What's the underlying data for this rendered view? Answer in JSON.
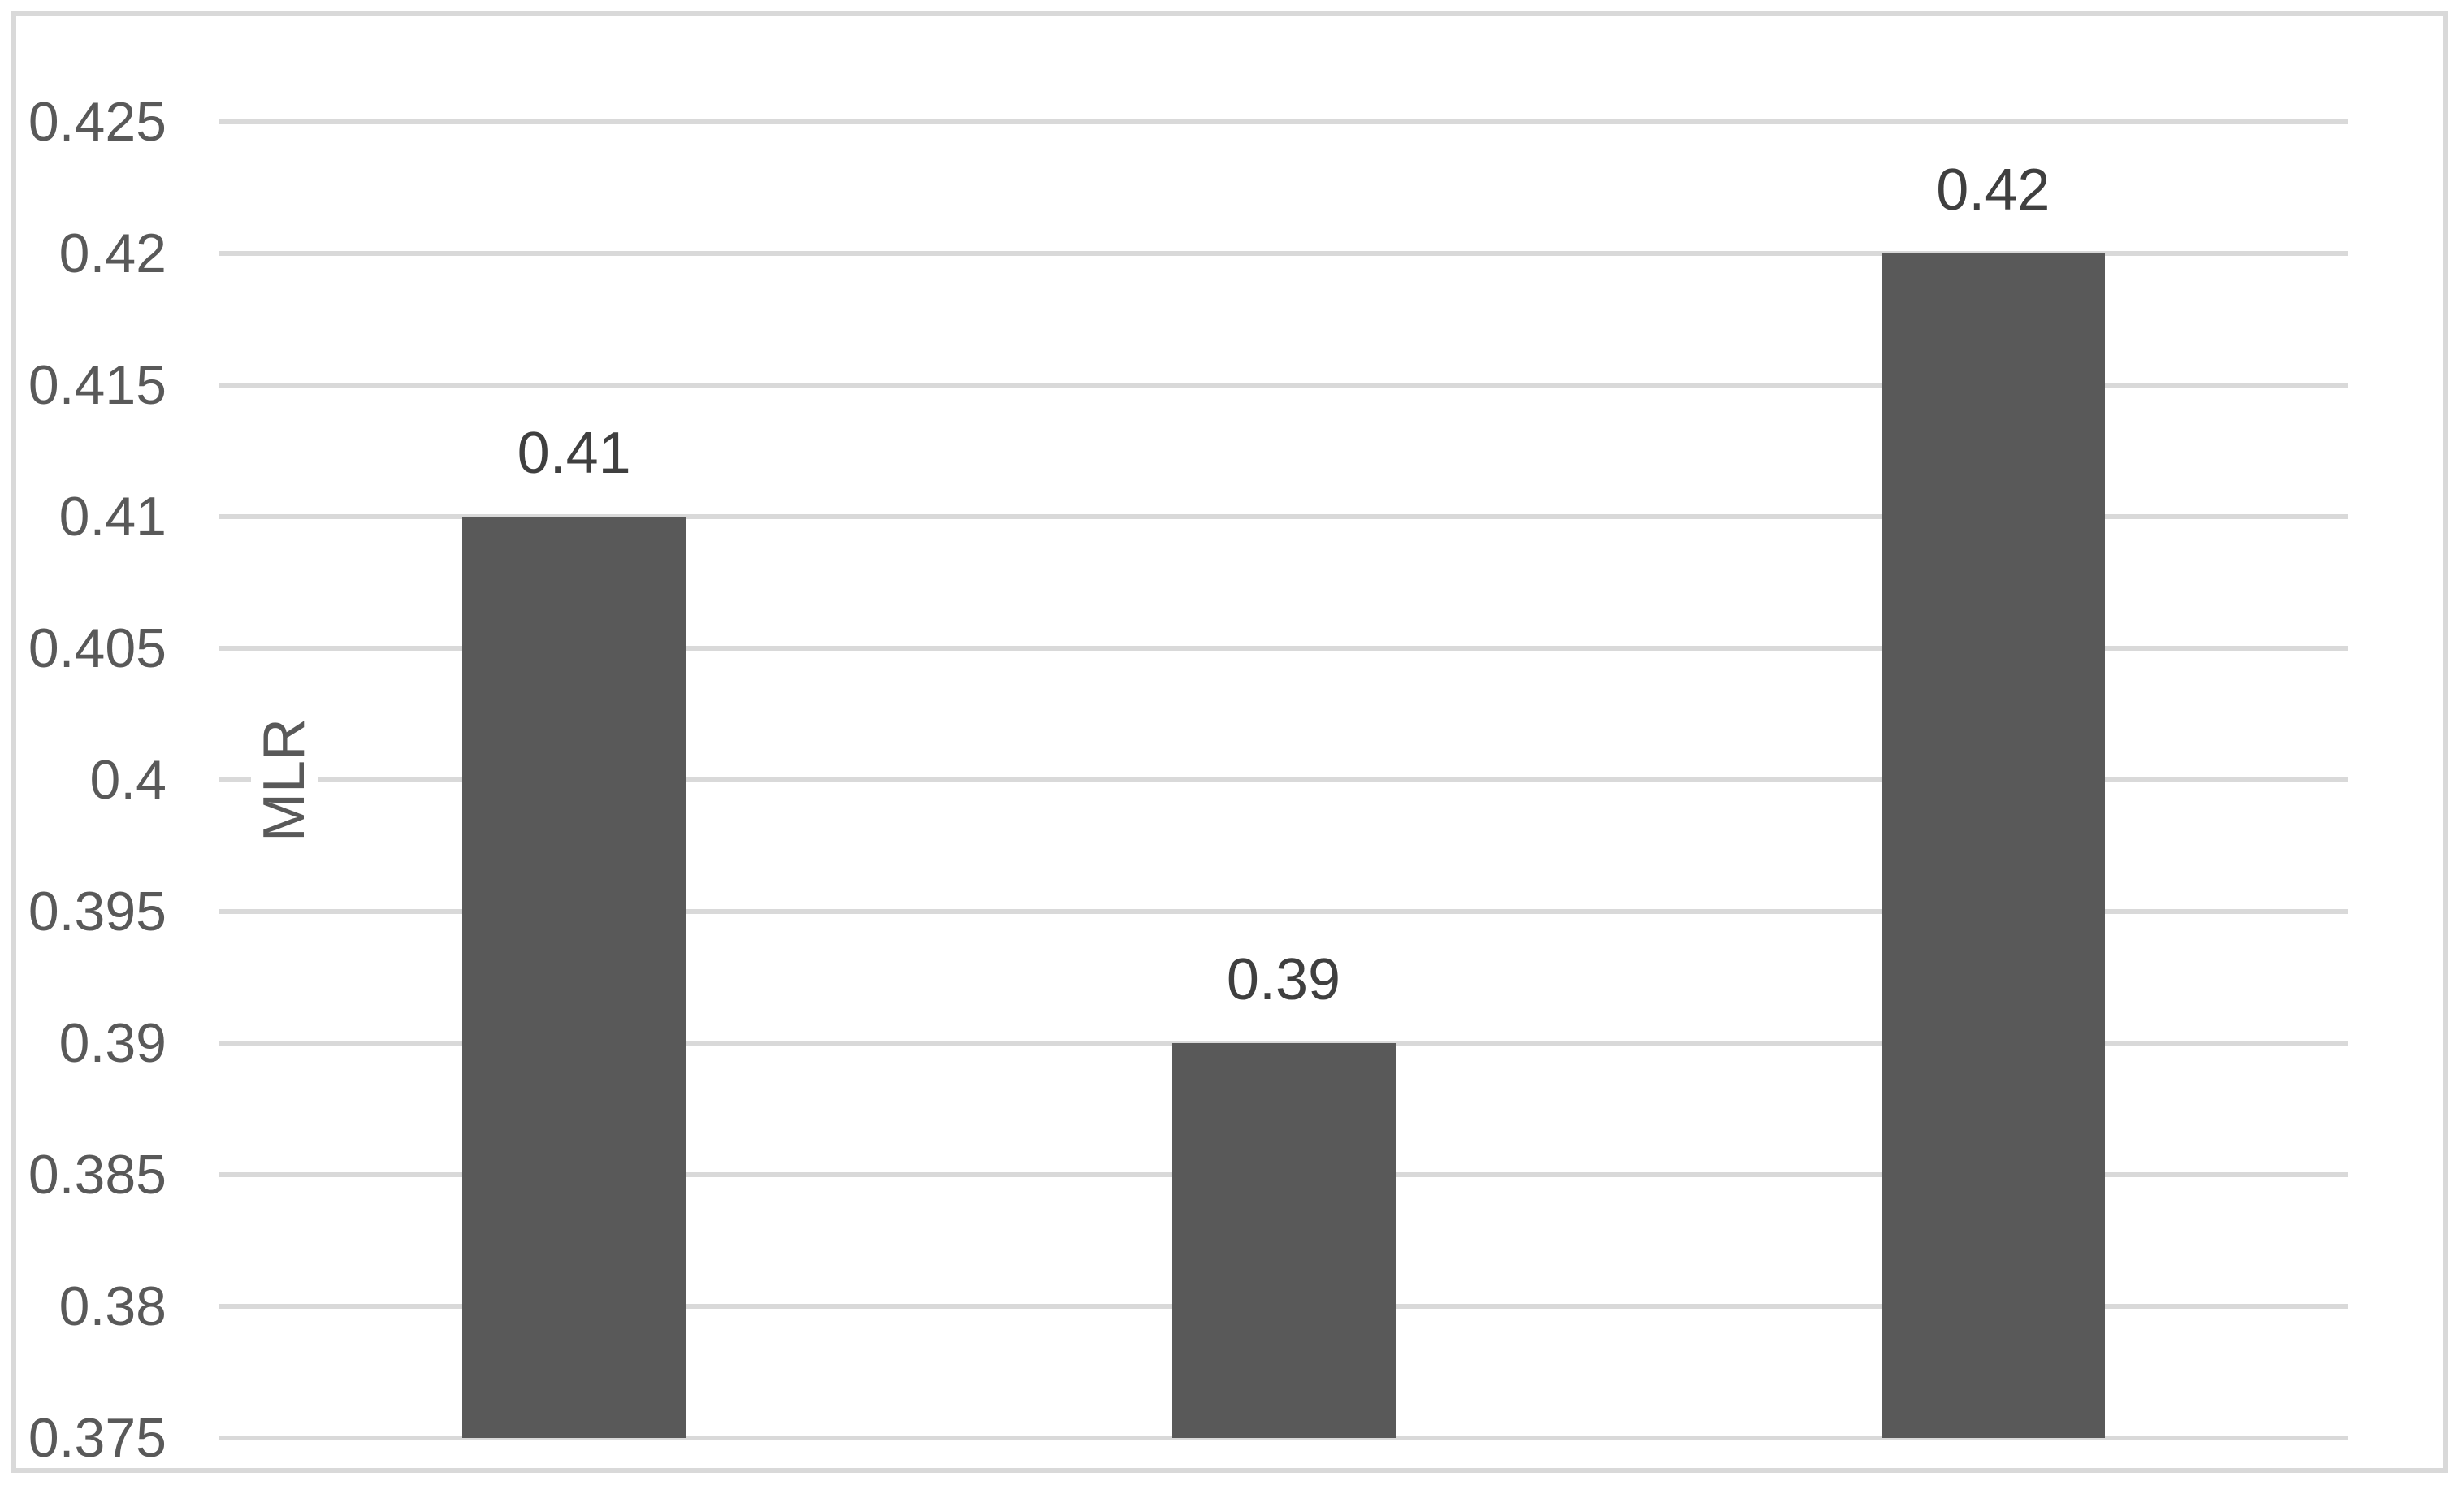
{
  "chart_data": {
    "type": "bar",
    "categories": [
      "",
      "",
      ""
    ],
    "values": [
      0.41,
      0.39,
      0.42
    ],
    "data_labels": [
      "0.41",
      "0.39",
      "0.42"
    ],
    "title": "",
    "xlabel": "",
    "ylabel": "MLR",
    "ylim": [
      0.375,
      0.425
    ],
    "ytick_step": 0.005,
    "yticks": [
      {
        "value": 0.425,
        "label": "0.425"
      },
      {
        "value": 0.42,
        "label": "0.42"
      },
      {
        "value": 0.415,
        "label": "0.415"
      },
      {
        "value": 0.41,
        "label": "0.41"
      },
      {
        "value": 0.405,
        "label": "0.405"
      },
      {
        "value": 0.4,
        "label": "0.4"
      },
      {
        "value": 0.395,
        "label": "0.395"
      },
      {
        "value": 0.39,
        "label": "0.39"
      },
      {
        "value": 0.385,
        "label": "0.385"
      },
      {
        "value": 0.38,
        "label": "0.38"
      },
      {
        "value": 0.375,
        "label": "0.375"
      }
    ],
    "grid": true,
    "legend": false,
    "x_axis_labels_visible": false,
    "colors": {
      "bar": "#595959",
      "gridline": "#d9d9d9",
      "tick_label": "#595959",
      "data_label": "#3f3f3f",
      "figure_border": "#d9d9d9",
      "background": "#ffffff"
    }
  }
}
